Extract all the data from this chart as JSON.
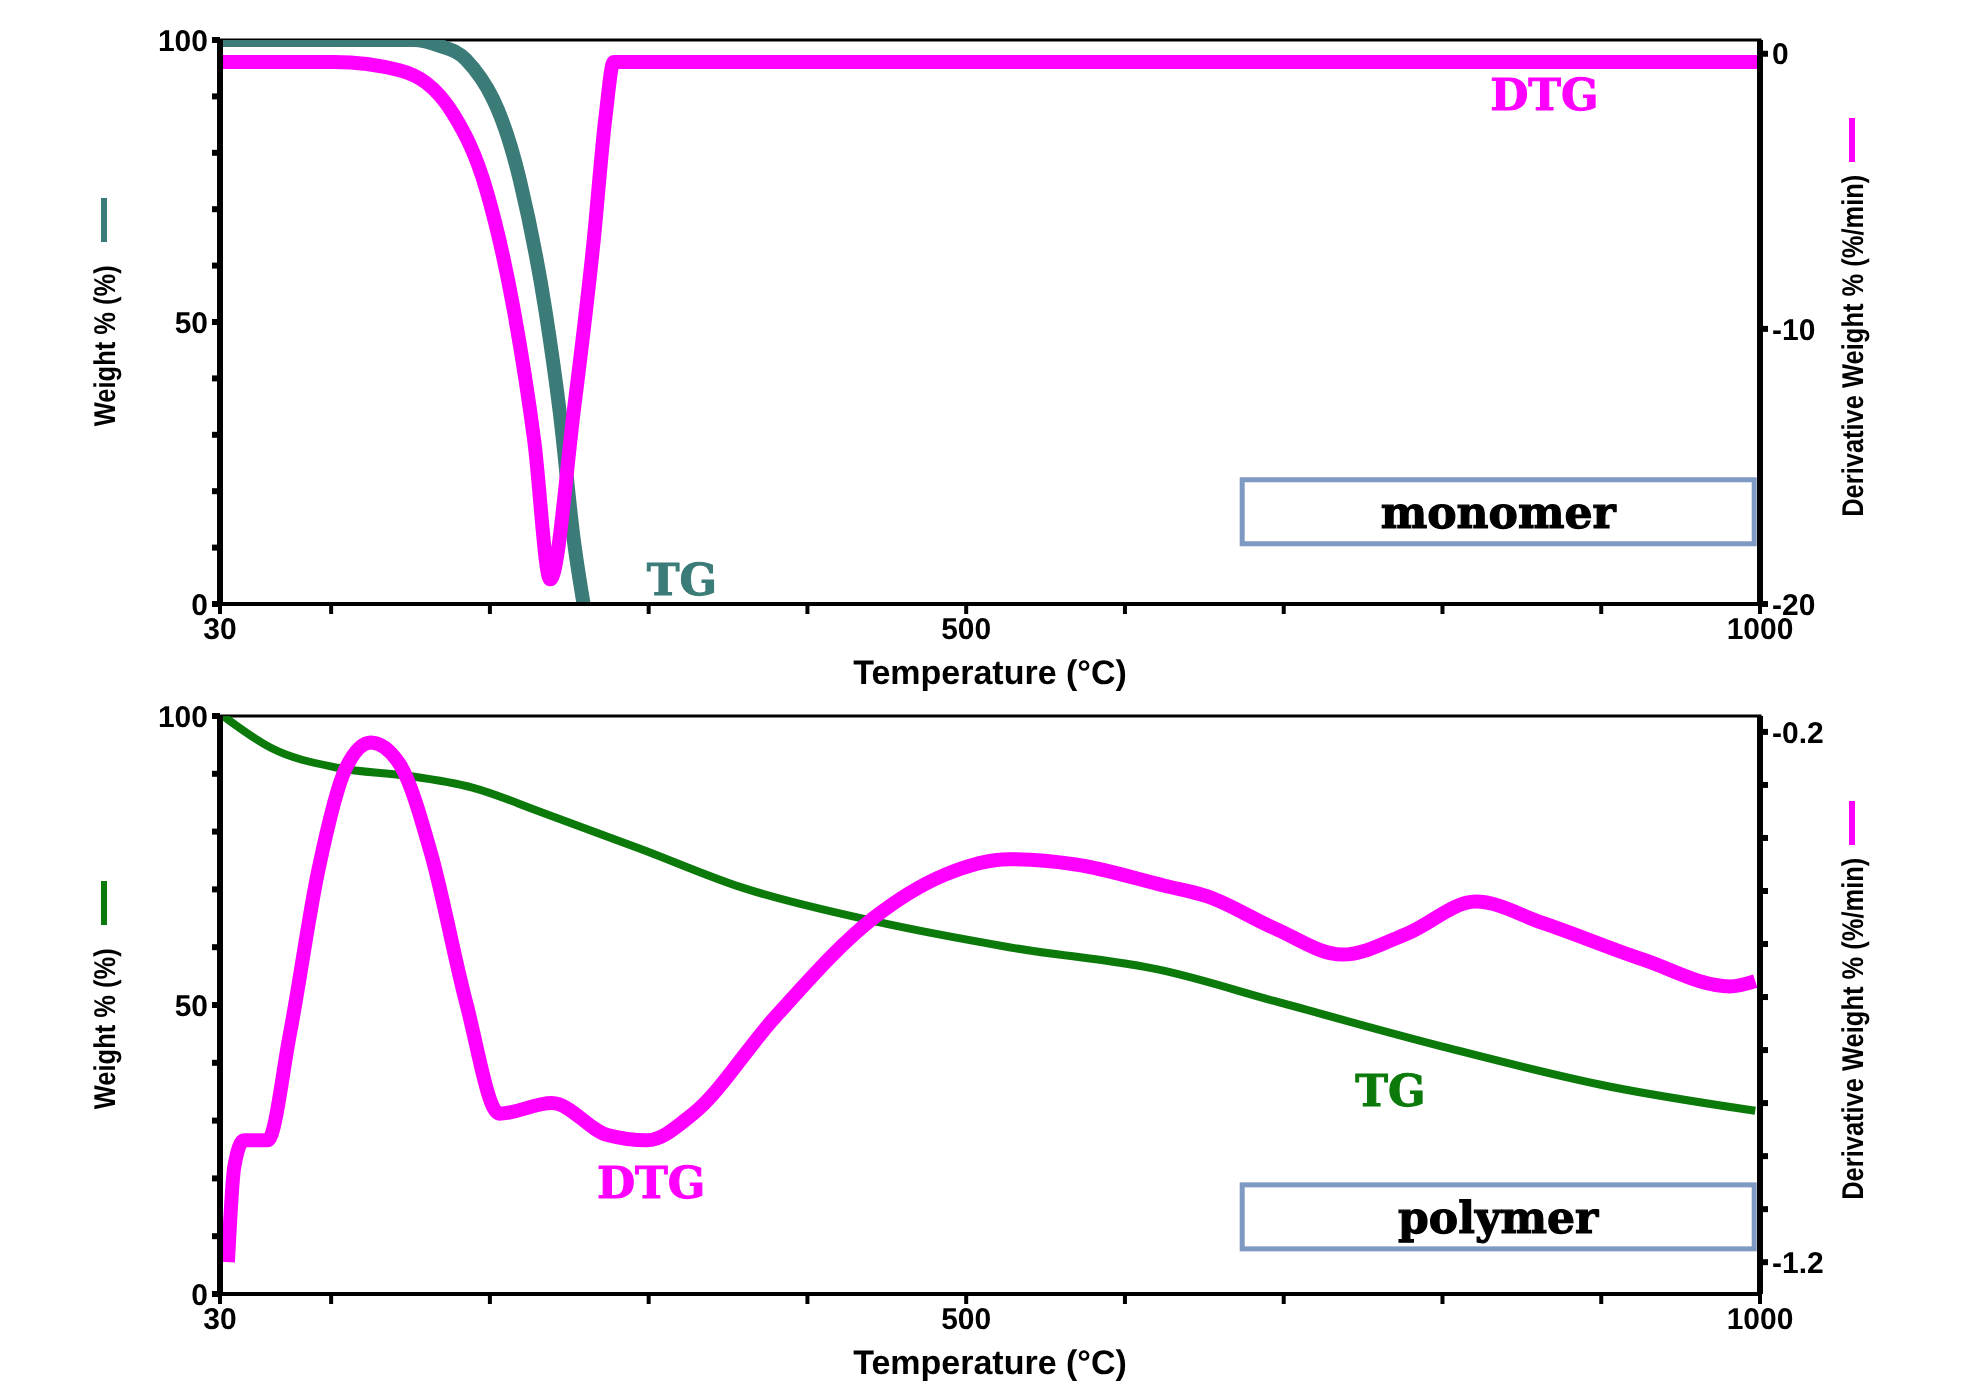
{
  "chart_data": [
    {
      "type": "line",
      "xlabel": "Temperature (°C)",
      "ylabel": "Weight % (%)",
      "y2label": "Derivative Weight % (%/min)",
      "annotations": [
        "monomer"
      ],
      "xlim": [
        30,
        1000
      ],
      "xticks": [
        30,
        {
          "value": 100,
          "label": null
        },
        {
          "value": 200,
          "label": null
        },
        {
          "value": 300,
          "label": null
        },
        {
          "value": 400,
          "label": null
        },
        500,
        {
          "value": 600,
          "label": null
        },
        {
          "value": 700,
          "label": null
        },
        {
          "value": 800,
          "label": null
        },
        {
          "value": 900,
          "label": null
        },
        1000
      ],
      "ylim": [
        0,
        100
      ],
      "yticks": [
        0,
        {
          "value": 10,
          "label": null
        },
        {
          "value": 20,
          "label": null
        },
        {
          "value": 30,
          "label": null
        },
        {
          "value": 40,
          "label": null
        },
        50,
        {
          "value": 60,
          "label": null
        },
        {
          "value": 70,
          "label": null
        },
        {
          "value": 80,
          "label": null
        },
        {
          "value": 90,
          "label": null
        },
        100
      ],
      "y2lim": [
        -20,
        0.5
      ],
      "y2ticks": [
        -20,
        -10,
        0
      ],
      "marker": "none",
      "line_style": "solid",
      "series": [
        {
          "name": "TG",
          "color": "#3b7b78",
          "x": [
            30,
            100,
            152,
            168,
            185,
            219,
            235,
            244,
            253,
            259
          ],
          "values": [
            100,
            100,
            100,
            99,
            96.5,
            75,
            52,
            34,
            11,
            0
          ]
        },
        {
          "name": "DTG",
          "color": "#ff00ff",
          "axis": "y2",
          "x": [
            30,
            102,
            143,
            177,
            198,
            215,
            228,
            238,
            253,
            265,
            273,
            278,
            500,
            1000
          ],
          "values": [
            -0.3,
            -0.3,
            -0.6,
            -2.2,
            -5,
            -9.3,
            -14.1,
            -19.1,
            -12.9,
            -7,
            -2.2,
            -0.3,
            -0.3,
            -0.3
          ]
        }
      ]
    },
    {
      "type": "line",
      "xlabel": "Temperature (°C)",
      "ylabel": "Weight % (%)",
      "y2label": "Derivative Weight % (%/min)",
      "annotations": [
        "polymer"
      ],
      "xlim": [
        30,
        1000
      ],
      "xticks": [
        30,
        {
          "value": 100,
          "label": null
        },
        {
          "value": 200,
          "label": null
        },
        {
          "value": 300,
          "label": null
        },
        {
          "value": 400,
          "label": null
        },
        500,
        {
          "value": 600,
          "label": null
        },
        {
          "value": 700,
          "label": null
        },
        {
          "value": 800,
          "label": null
        },
        {
          "value": 900,
          "label": null
        },
        1000
      ],
      "ylim": [
        0,
        100
      ],
      "yticks": [
        0,
        {
          "value": 10,
          "label": null
        },
        {
          "value": 20,
          "label": null
        },
        {
          "value": 30,
          "label": null
        },
        {
          "value": 40,
          "label": null
        },
        50,
        {
          "value": 60,
          "label": null
        },
        {
          "value": 70,
          "label": null
        },
        {
          "value": 80,
          "label": null
        },
        {
          "value": 90,
          "label": null
        },
        100
      ],
      "y2lim": [
        -1.26,
        -0.17
      ],
      "y2ticks": [
        -1.2,
        {
          "value": -1.1,
          "label": null
        },
        {
          "value": -1,
          "label": null
        },
        {
          "value": -0.9,
          "label": null
        },
        {
          "value": -0.8,
          "label": null
        },
        {
          "value": -0.7,
          "label": null
        },
        {
          "value": -0.6,
          "label": null
        },
        {
          "value": -0.5,
          "label": null
        },
        {
          "value": -0.4,
          "label": null
        },
        {
          "value": -0.3,
          "label": null
        },
        -0.2
      ],
      "marker": "none",
      "line_style": "solid",
      "series": [
        {
          "name": "TG",
          "color": "#0b7a0b",
          "x": [
            32,
            62,
            105,
            147,
            189,
            232,
            295,
            359,
            442,
            527,
            625,
            694,
            800,
            905,
            997
          ],
          "values": [
            100,
            94.5,
            91,
            89.7,
            87.6,
            83.4,
            77,
            70.3,
            64.5,
            60,
            55.9,
            50.7,
            42.8,
            35.9,
            31.7
          ]
        },
        {
          "name": "DTG",
          "color": "#ff00ff",
          "axis": "y2",
          "x": [
            35,
            39,
            45,
            60,
            74,
            92,
            109,
            125,
            143,
            163,
            185,
            206,
            239,
            274,
            299,
            328,
            379,
            442,
            486,
            527,
            569,
            625,
            652,
            694,
            737,
            778,
            821,
            863,
            927,
            981,
            997
          ],
          "values": [
            -1.2,
            -1.02,
            -0.97,
            -0.97,
            -0.77,
            -0.46,
            -0.27,
            -0.22,
            -0.26,
            -0.43,
            -0.71,
            -0.92,
            -0.9,
            -0.96,
            -0.97,
            -0.92,
            -0.74,
            -0.55,
            -0.47,
            -0.44,
            -0.45,
            -0.49,
            -0.51,
            -0.57,
            -0.62,
            -0.58,
            -0.52,
            -0.56,
            -0.63,
            -0.68,
            -0.67
          ]
        }
      ]
    }
  ]
}
